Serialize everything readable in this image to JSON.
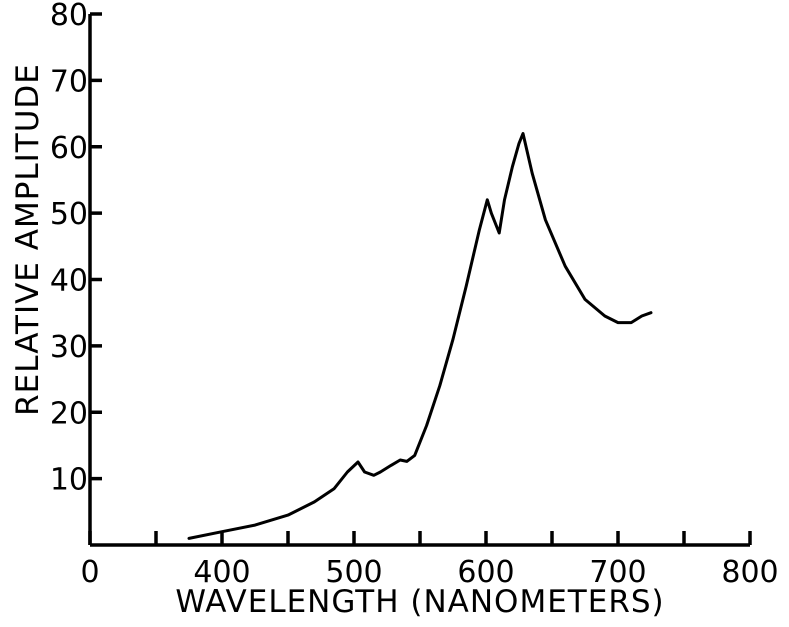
{
  "chart_data": {
    "type": "line",
    "title": "",
    "xlabel": "WAVELENGTH (NANOMETERS)",
    "ylabel": "RELATIVE AMPLITUDE",
    "xlim": [
      300,
      800
    ],
    "ylim": [
      0,
      80
    ],
    "x_ticks": [
      300,
      350,
      400,
      450,
      500,
      550,
      600,
      650,
      700,
      750,
      800
    ],
    "x_tick_labels": [
      {
        "value": 300,
        "label": "0"
      },
      {
        "value": 400,
        "label": "400"
      },
      {
        "value": 500,
        "label": "500"
      },
      {
        "value": 600,
        "label": "600"
      },
      {
        "value": 700,
        "label": "700"
      },
      {
        "value": 800,
        "label": "800"
      }
    ],
    "y_ticks": [
      10,
      20,
      30,
      40,
      50,
      60,
      70,
      80
    ],
    "y_tick_labels": [
      {
        "value": 10,
        "label": "10"
      },
      {
        "value": 20,
        "label": "20"
      },
      {
        "value": 30,
        "label": "30"
      },
      {
        "value": 40,
        "label": "40"
      },
      {
        "value": 50,
        "label": "50"
      },
      {
        "value": 60,
        "label": "60"
      },
      {
        "value": 70,
        "label": "70"
      },
      {
        "value": 80,
        "label": "80"
      }
    ],
    "grid": false,
    "series": [
      {
        "x": [
          375,
          400,
          425,
          450,
          470,
          485,
          495,
          503,
          508,
          515,
          520,
          528,
          535,
          540,
          546,
          555,
          565,
          575,
          585,
          595,
          601,
          604,
          610,
          614,
          620,
          625,
          628,
          635,
          645,
          660,
          675,
          690,
          700,
          710,
          718,
          725
        ],
        "y": [
          1,
          2,
          3,
          4.5,
          6.5,
          8.5,
          11,
          12.5,
          11,
          10.5,
          11,
          12,
          12.8,
          12.6,
          13.5,
          18,
          24,
          31,
          39,
          47.5,
          52,
          50,
          47,
          52,
          57,
          60.5,
          62,
          56,
          49,
          42,
          37,
          34.5,
          33.5,
          33.5,
          34.5,
          35
        ]
      }
    ]
  }
}
